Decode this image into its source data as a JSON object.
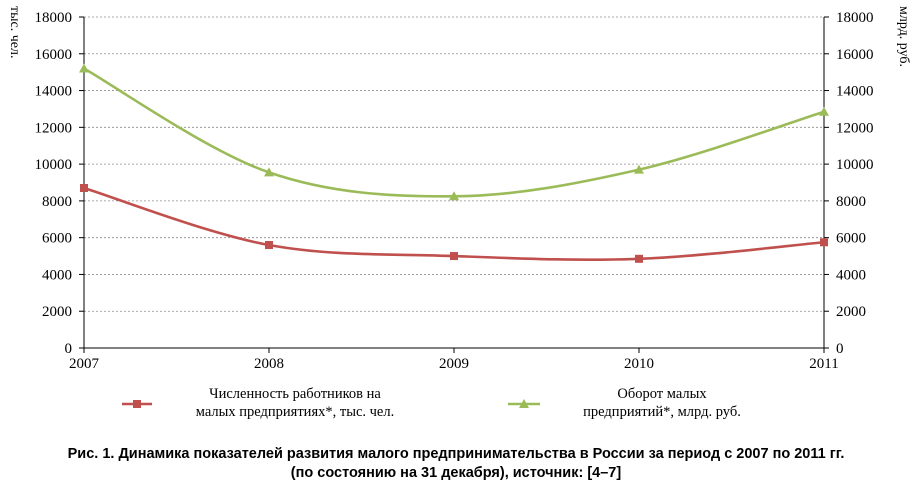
{
  "chart_data": {
    "type": "line",
    "x": [
      2007,
      2008,
      2009,
      2010,
      2011
    ],
    "xlim": [
      2007,
      2011
    ],
    "ylim_left": [
      0,
      18000
    ],
    "ylim_right": [
      0,
      18000
    ],
    "yticks": [
      0,
      2000,
      4000,
      6000,
      8000,
      10000,
      12000,
      14000,
      16000,
      18000
    ],
    "ylabel_left": "тыс. чел.",
    "ylabel_right": "млрд. руб.",
    "grid": true,
    "series": [
      {
        "name": "Численность работников на малых предприятиях*, тыс. чел.",
        "legend_lines": [
          "Численность работников на",
          "малых предприятиях*, тыс. чел."
        ],
        "axis": "left",
        "color": "#c0504d",
        "marker": "square",
        "values": [
          8700,
          5600,
          5000,
          4850,
          5750
        ]
      },
      {
        "name": "Оборот малых предприятий*, млрд. руб.",
        "legend_lines": [
          "Оборот малых",
          "предприятий*, млрд. руб."
        ],
        "axis": "right",
        "color": "#9bbb59",
        "marker": "triangle",
        "values": [
          15200,
          9550,
          8250,
          9700,
          12850
        ]
      }
    ]
  },
  "caption": {
    "line1": "Рис. 1. Динамика показателей развития малого предпринимательства в России за период с 2007 по 2011 гг.",
    "line2": "(по состоянию на 31 декабря), источник: [4–7]"
  }
}
